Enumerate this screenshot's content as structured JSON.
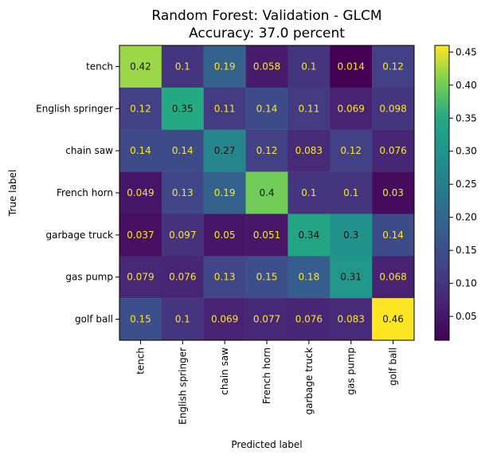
{
  "chart_data": {
    "type": "heatmap",
    "title_lines": [
      "Random Forest: Validation - GLCM",
      "Accuracy: 37.0 percent"
    ],
    "xlabel": "Predicted label",
    "ylabel": "True label",
    "row_labels": [
      "tench",
      "English springer",
      "chain saw",
      "French horn",
      "garbage truck",
      "gas pump",
      "golf ball"
    ],
    "col_labels": [
      "tench",
      "English springer",
      "chain saw",
      "French horn",
      "garbage truck",
      "gas pump",
      "golf ball"
    ],
    "values": [
      [
        0.42,
        0.1,
        0.19,
        0.058,
        0.1,
        0.014,
        0.12
      ],
      [
        0.12,
        0.35,
        0.11,
        0.14,
        0.11,
        0.069,
        0.098
      ],
      [
        0.14,
        0.14,
        0.27,
        0.12,
        0.083,
        0.12,
        0.076
      ],
      [
        0.049,
        0.13,
        0.19,
        0.4,
        0.1,
        0.1,
        0.03
      ],
      [
        0.037,
        0.097,
        0.05,
        0.051,
        0.34,
        0.3,
        0.14
      ],
      [
        0.079,
        0.076,
        0.13,
        0.15,
        0.18,
        0.31,
        0.068
      ],
      [
        0.15,
        0.1,
        0.069,
        0.077,
        0.076,
        0.083,
        0.46
      ]
    ],
    "colormap": "viridis",
    "colorbar": {
      "range": [
        0.014,
        0.46
      ],
      "ticks": [
        0.05,
        0.1,
        0.15,
        0.2,
        0.25,
        0.3,
        0.35,
        0.4,
        0.45
      ],
      "tick_labels": [
        "0.05",
        "0.10",
        "0.15",
        "0.20",
        "0.25",
        "0.30",
        "0.35",
        "0.40",
        "0.45"
      ]
    },
    "grid": false,
    "cell_text_colors": {
      "light": "#fde725",
      "dark": "#111111"
    }
  }
}
